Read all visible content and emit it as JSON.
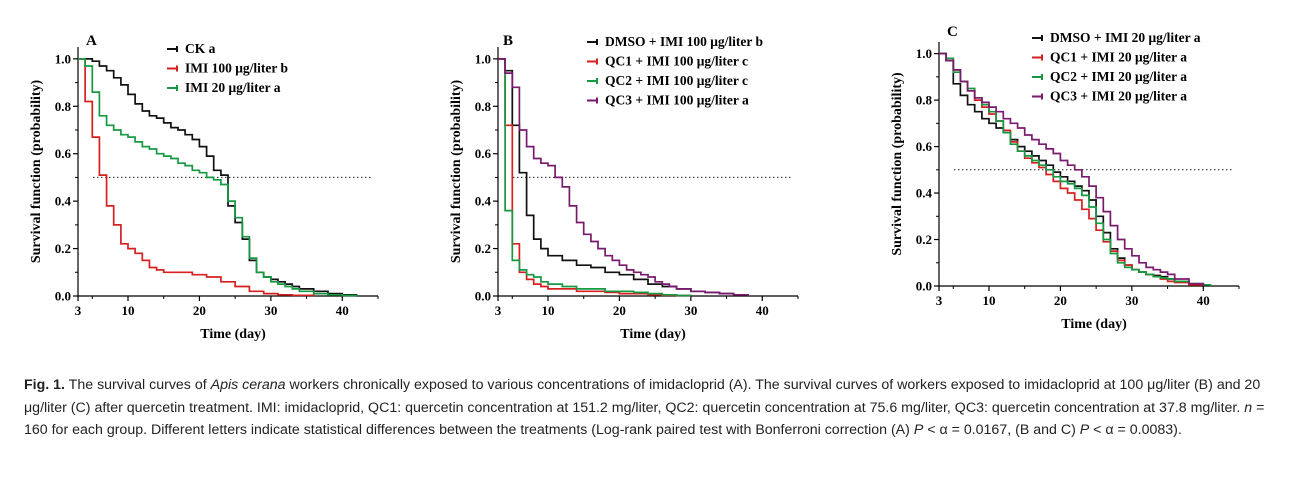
{
  "chart_data": [
    {
      "type": "line",
      "panel_letter": "A",
      "xlabel": "Time (day)",
      "ylabel": "Survival function (probability)",
      "xlim": [
        3,
        45
      ],
      "ylim": [
        0,
        1.05
      ],
      "x_ticks": [
        3,
        10,
        20,
        30,
        40
      ],
      "y_ticks": [
        "0.0",
        "0.2",
        "0.4",
        "0.6",
        "0.8",
        "1.0"
      ],
      "reference_line_y": 0.5,
      "legend_position": "top-right",
      "series": [
        {
          "name": "CK a",
          "color": "#111111",
          "x": [
            3,
            5,
            6,
            7,
            8,
            9,
            10,
            11,
            12,
            13,
            14,
            15,
            16,
            17,
            18,
            19,
            20,
            21,
            22,
            23,
            24,
            25,
            26,
            27,
            28,
            29,
            30,
            31,
            32,
            33,
            34,
            36,
            38,
            40,
            42
          ],
          "y": [
            1.0,
            0.99,
            0.97,
            0.95,
            0.92,
            0.89,
            0.85,
            0.81,
            0.78,
            0.76,
            0.75,
            0.73,
            0.71,
            0.7,
            0.68,
            0.66,
            0.63,
            0.59,
            0.53,
            0.51,
            0.38,
            0.31,
            0.24,
            0.15,
            0.1,
            0.08,
            0.07,
            0.06,
            0.05,
            0.04,
            0.03,
            0.02,
            0.01,
            0.005,
            0.0
          ]
        },
        {
          "name": "IMI 100 μg/liter b",
          "color": "#d62020",
          "x": [
            3,
            4,
            5,
            6,
            7,
            8,
            9,
            10,
            11,
            12,
            13,
            14,
            15,
            17,
            19,
            21,
            23,
            25,
            27,
            29,
            31,
            33,
            36
          ],
          "y": [
            1.0,
            0.82,
            0.67,
            0.51,
            0.38,
            0.3,
            0.22,
            0.2,
            0.18,
            0.15,
            0.12,
            0.11,
            0.1,
            0.1,
            0.09,
            0.08,
            0.06,
            0.04,
            0.02,
            0.01,
            0.005,
            0.003,
            0.0
          ]
        },
        {
          "name": "IMI 20 μg/liter a",
          "color": "#159a42",
          "x": [
            3,
            4,
            5,
            6,
            7,
            8,
            9,
            10,
            11,
            12,
            13,
            14,
            15,
            16,
            17,
            18,
            19,
            20,
            21,
            22,
            23,
            24,
            25,
            26,
            27,
            28,
            29,
            30,
            31,
            32,
            33,
            34,
            36,
            38,
            40,
            42
          ],
          "y": [
            1.0,
            0.97,
            0.86,
            0.76,
            0.72,
            0.7,
            0.68,
            0.67,
            0.65,
            0.63,
            0.62,
            0.6,
            0.59,
            0.58,
            0.56,
            0.55,
            0.53,
            0.52,
            0.5,
            0.49,
            0.47,
            0.4,
            0.33,
            0.25,
            0.16,
            0.1,
            0.08,
            0.06,
            0.05,
            0.04,
            0.03,
            0.02,
            0.01,
            0.005,
            0.002,
            0.0
          ]
        }
      ]
    },
    {
      "type": "line",
      "panel_letter": "B",
      "xlabel": "Time (day)",
      "ylabel": "Survival function (probability)",
      "xlim": [
        3,
        45
      ],
      "ylim": [
        0,
        1.05
      ],
      "x_ticks": [
        3,
        10,
        20,
        30,
        40
      ],
      "y_ticks": [
        "0.0",
        "0.2",
        "0.4",
        "0.6",
        "0.8",
        "1.0"
      ],
      "reference_line_y": 0.5,
      "legend_position": "top-right",
      "series": [
        {
          "name": "DMSO + IMI 100 μg/liter b",
          "color": "#111111",
          "x": [
            3,
            4,
            5,
            6,
            7,
            8,
            9,
            10,
            12,
            14,
            16,
            18,
            20,
            22,
            24,
            26,
            28,
            30,
            32,
            34,
            36,
            38
          ],
          "y": [
            1.0,
            0.95,
            0.72,
            0.52,
            0.34,
            0.24,
            0.2,
            0.17,
            0.15,
            0.13,
            0.12,
            0.1,
            0.09,
            0.07,
            0.05,
            0.04,
            0.03,
            0.02,
            0.015,
            0.01,
            0.005,
            0.0
          ]
        },
        {
          "name": "QC1 + IMI 100 μg/liter c",
          "color": "#d62020",
          "x": [
            3,
            4,
            5,
            6,
            7,
            8,
            9,
            10,
            12,
            14,
            16,
            18,
            20,
            22,
            24,
            26,
            28,
            30
          ],
          "y": [
            1.0,
            0.72,
            0.22,
            0.1,
            0.07,
            0.05,
            0.04,
            0.03,
            0.03,
            0.02,
            0.02,
            0.015,
            0.01,
            0.01,
            0.005,
            0.003,
            0.002,
            0.0
          ]
        },
        {
          "name": "QC2 + IMI 100 μg/liter c",
          "color": "#159a42",
          "x": [
            3,
            4,
            5,
            6,
            7,
            8,
            9,
            10,
            12,
            14,
            16,
            18,
            20,
            22,
            24,
            26,
            28,
            30
          ],
          "y": [
            1.0,
            0.36,
            0.15,
            0.11,
            0.09,
            0.08,
            0.06,
            0.05,
            0.04,
            0.03,
            0.03,
            0.02,
            0.02,
            0.015,
            0.01,
            0.005,
            0.002,
            0.0
          ]
        },
        {
          "name": "QC3 + IMI 100 μg/liter a",
          "color": "#7a1a6e",
          "x": [
            3,
            4,
            5,
            6,
            7,
            8,
            9,
            10,
            11,
            12,
            13,
            14,
            15,
            16,
            17,
            18,
            19,
            20,
            21,
            22,
            23,
            24,
            25,
            26,
            27,
            28,
            30,
            32,
            34,
            36,
            38
          ],
          "y": [
            1.0,
            0.94,
            0.88,
            0.7,
            0.63,
            0.58,
            0.56,
            0.55,
            0.5,
            0.46,
            0.38,
            0.31,
            0.26,
            0.23,
            0.2,
            0.17,
            0.15,
            0.13,
            0.11,
            0.1,
            0.09,
            0.08,
            0.06,
            0.05,
            0.04,
            0.03,
            0.02,
            0.015,
            0.01,
            0.005,
            0.0
          ]
        }
      ]
    },
    {
      "type": "line",
      "panel_letter": "C",
      "xlabel": "Time (day)",
      "ylabel": "Survival function (probability)",
      "xlim": [
        3,
        45
      ],
      "ylim": [
        0,
        1.05
      ],
      "x_ticks": [
        3,
        10,
        20,
        30,
        40
      ],
      "y_ticks": [
        "0.0",
        "0.2",
        "0.4",
        "0.6",
        "0.8",
        "1.0"
      ],
      "reference_line_y": 0.5,
      "legend_position": "top-right",
      "series": [
        {
          "name": "DMSO + IMI 20 μg/liter a",
          "color": "#111111",
          "x": [
            3,
            4,
            5,
            6,
            7,
            8,
            9,
            10,
            11,
            12,
            13,
            14,
            15,
            16,
            17,
            18,
            19,
            20,
            21,
            22,
            23,
            24,
            25,
            26,
            27,
            28,
            29,
            30,
            31,
            32,
            33,
            34,
            35,
            36,
            38,
            40
          ],
          "y": [
            1.0,
            0.97,
            0.87,
            0.82,
            0.78,
            0.75,
            0.72,
            0.7,
            0.68,
            0.66,
            0.63,
            0.6,
            0.58,
            0.56,
            0.54,
            0.52,
            0.49,
            0.47,
            0.45,
            0.43,
            0.41,
            0.37,
            0.3,
            0.23,
            0.16,
            0.12,
            0.09,
            0.07,
            0.06,
            0.05,
            0.045,
            0.04,
            0.03,
            0.02,
            0.01,
            0.0
          ]
        },
        {
          "name": "QC1 + IMI 20 μg/liter a",
          "color": "#d62020",
          "x": [
            3,
            4,
            5,
            6,
            7,
            8,
            9,
            10,
            11,
            12,
            13,
            14,
            15,
            16,
            17,
            18,
            19,
            20,
            21,
            22,
            23,
            24,
            25,
            26,
            27,
            28,
            29,
            30,
            31,
            32,
            33,
            34,
            35,
            36,
            38,
            40
          ],
          "y": [
            1.0,
            0.98,
            0.93,
            0.88,
            0.84,
            0.8,
            0.77,
            0.74,
            0.71,
            0.67,
            0.62,
            0.58,
            0.55,
            0.53,
            0.51,
            0.48,
            0.45,
            0.42,
            0.4,
            0.37,
            0.33,
            0.29,
            0.24,
            0.19,
            0.15,
            0.11,
            0.09,
            0.07,
            0.06,
            0.05,
            0.04,
            0.03,
            0.02,
            0.015,
            0.005,
            0.0
          ]
        },
        {
          "name": "QC2 + IMI 20 μg/liter a",
          "color": "#159a42",
          "x": [
            3,
            4,
            5,
            6,
            7,
            8,
            9,
            10,
            11,
            12,
            13,
            14,
            15,
            16,
            17,
            18,
            19,
            20,
            21,
            22,
            23,
            24,
            25,
            26,
            27,
            28,
            29,
            30,
            31,
            32,
            33,
            34,
            35,
            36,
            38,
            40,
            41
          ],
          "y": [
            1.0,
            0.98,
            0.92,
            0.88,
            0.85,
            0.81,
            0.78,
            0.75,
            0.71,
            0.66,
            0.61,
            0.58,
            0.56,
            0.54,
            0.52,
            0.5,
            0.47,
            0.45,
            0.44,
            0.42,
            0.39,
            0.34,
            0.27,
            0.2,
            0.14,
            0.1,
            0.08,
            0.07,
            0.06,
            0.05,
            0.04,
            0.035,
            0.03,
            0.02,
            0.01,
            0.005,
            0.0
          ]
        },
        {
          "name": "QC3 + IMI 20 μg/liter a",
          "color": "#7a1a6e",
          "x": [
            3,
            4,
            5,
            6,
            7,
            8,
            9,
            10,
            11,
            12,
            13,
            14,
            15,
            16,
            17,
            18,
            19,
            20,
            21,
            22,
            23,
            24,
            25,
            26,
            27,
            28,
            29,
            30,
            31,
            32,
            33,
            34,
            35,
            36,
            38,
            40
          ],
          "y": [
            1.0,
            0.97,
            0.93,
            0.88,
            0.84,
            0.81,
            0.79,
            0.77,
            0.75,
            0.72,
            0.7,
            0.68,
            0.65,
            0.63,
            0.61,
            0.59,
            0.57,
            0.54,
            0.52,
            0.5,
            0.47,
            0.43,
            0.38,
            0.32,
            0.26,
            0.2,
            0.16,
            0.13,
            0.1,
            0.08,
            0.07,
            0.06,
            0.05,
            0.03,
            0.01,
            0.0
          ]
        }
      ]
    }
  ],
  "caption": {
    "fig_label": "Fig. 1.",
    "text_1": " The survival curves of ",
    "species": "Apis cerana",
    "text_2": " workers chronically exposed to various concentrations of imidacloprid (A). The survival curves of workers exposed to imidacloprid at 100 μg/liter (B) and 20 μg/liter (C) after quercetin treatment. IMI: imidacloprid, QC1: quercetin concentration at 151.2 mg/liter, QC2: quercetin concentration at 75.6 mg/liter, QC3: quercetin concentration at 37.8 mg/liter. ",
    "n_symbol": "n",
    "text_3": " = 160 for each group. Different letters indicate statistical differences between the treatments (Log-rank paired test with Bonferroni correction (A) ",
    "p_symbol_1": "P",
    "text_4": " < α = 0.0167, (B and C) ",
    "p_symbol_2": "P",
    "text_5": " < α = 0.0083)."
  }
}
